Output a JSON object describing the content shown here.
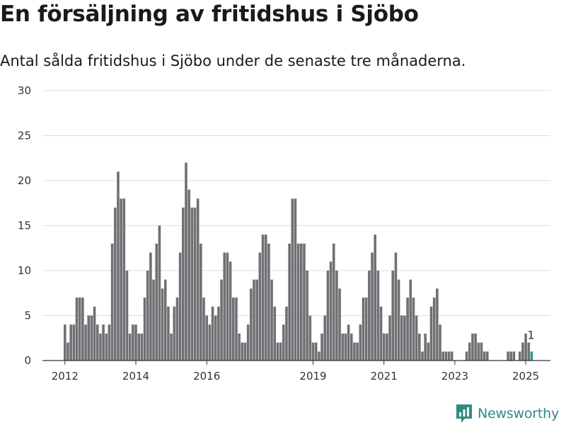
{
  "title": "En försäljning av fritidshus i Sjöbo",
  "subtitle": "Antal sålda fritidshus i Sjöbo under de senaste tre månaderna.",
  "brand": {
    "name": "Newsworthy",
    "icon": "newsworthy-logo-icon",
    "color": "#2f8c83"
  },
  "colors": {
    "bar": "#707074",
    "highlight": "#2e9a8d",
    "grid": "#dddddd",
    "axis": "#333333"
  },
  "chart_data": {
    "type": "bar",
    "title": "En försäljning av fritidshus i Sjöbo",
    "subtitle": "Antal sålda fritidshus i Sjöbo under de senaste tre månaderna.",
    "xlabel": "",
    "ylabel": "",
    "ylim": [
      0,
      30
    ],
    "yticks": [
      0,
      5,
      10,
      15,
      20,
      25,
      30
    ],
    "xticks": [
      "2012",
      "2014",
      "2016",
      "2019",
      "2021",
      "2023",
      "2025"
    ],
    "grid": true,
    "start": "2012-01",
    "frequency": "monthly",
    "values": [
      4,
      2,
      4,
      4,
      7,
      7,
      7,
      4,
      5,
      5,
      6,
      4,
      3,
      4,
      3,
      4,
      13,
      17,
      21,
      18,
      18,
      10,
      3,
      4,
      4,
      3,
      3,
      7,
      10,
      12,
      9,
      13,
      15,
      8,
      9,
      6,
      3,
      6,
      7,
      12,
      17,
      22,
      19,
      17,
      17,
      18,
      13,
      7,
      5,
      4,
      6,
      5,
      6,
      9,
      12,
      12,
      11,
      7,
      7,
      3,
      2,
      2,
      4,
      8,
      9,
      9,
      12,
      14,
      14,
      13,
      9,
      6,
      2,
      2,
      4,
      6,
      13,
      18,
      18,
      13,
      13,
      13,
      10,
      5,
      2,
      2,
      1,
      3,
      5,
      10,
      11,
      13,
      10,
      8,
      3,
      3,
      4,
      3,
      2,
      2,
      4,
      7,
      7,
      10,
      12,
      14,
      10,
      6,
      3,
      3,
      5,
      10,
      12,
      9,
      5,
      5,
      7,
      9,
      7,
      5,
      3,
      1,
      3,
      2,
      6,
      7,
      8,
      4,
      1,
      1,
      1,
      1,
      0,
      0,
      0,
      0,
      1,
      2,
      3,
      3,
      2,
      2,
      1,
      1,
      0,
      0,
      0,
      0,
      0,
      0,
      1,
      1,
      1,
      0,
      1,
      2,
      3,
      2,
      1
    ],
    "highlight": {
      "index": 158,
      "value": 1,
      "label": "1"
    }
  }
}
